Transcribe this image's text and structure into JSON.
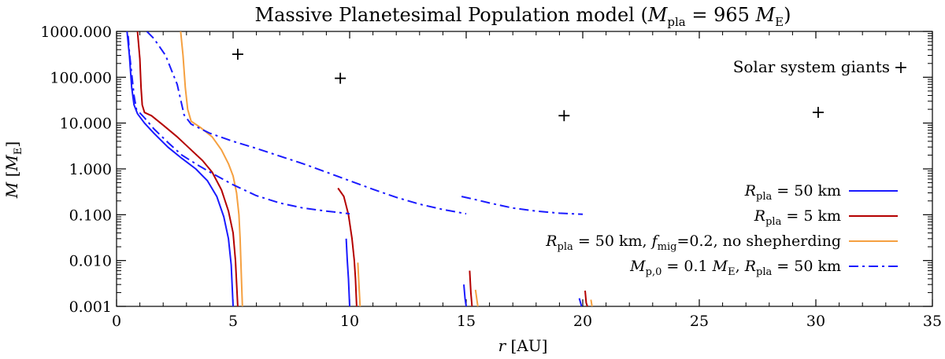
{
  "chart_data": {
    "type": "line",
    "title": {
      "prefix": "Massive Planetesimal Population model (",
      "sym": "M",
      "sub": "pla",
      "mid": " = 965 ",
      "unit": "M",
      "unit_sub": "E",
      "suffix": ")"
    },
    "xlabel": {
      "sym": "r",
      "rest": " [AU]"
    },
    "ylabel": {
      "sym": "M",
      "open": " [",
      "unit": "M",
      "unit_sub": "E",
      "close": "]"
    },
    "xlim": [
      0,
      35
    ],
    "ylim": [
      0.001,
      1000
    ],
    "yscale": "log",
    "xticks": [
      0,
      5,
      10,
      15,
      20,
      25,
      30,
      35
    ],
    "xtick_labels": [
      "0",
      "5",
      "10",
      "15",
      "20",
      "25",
      "30",
      "35"
    ],
    "yticks": [
      0.001,
      0.01,
      0.1,
      1,
      10,
      100,
      1000
    ],
    "ytick_labels": [
      "0.001",
      "0.010",
      "0.100",
      "1.000",
      "10.000",
      "100.000",
      "1000.000"
    ],
    "grid": false,
    "legend_position": "bottom-right",
    "colors": {
      "blue": "#1a1aff",
      "red": "#b40000",
      "orange": "#f5a040",
      "black": "#000000"
    },
    "giants_label": "Solar system giants",
    "giants_marker": "+",
    "giants": [
      {
        "x": 5.2,
        "y": 318
      },
      {
        "x": 9.6,
        "y": 95
      },
      {
        "x": 19.2,
        "y": 14.5
      },
      {
        "x": 30.1,
        "y": 17.1
      }
    ],
    "legend": [
      {
        "color": "#1a1aff",
        "dash": "solid",
        "parts": [
          [
            "R",
            "i"
          ],
          [
            "pla",
            "sub"
          ],
          [
            " = 50 km",
            "n"
          ]
        ]
      },
      {
        "color": "#b40000",
        "dash": "solid",
        "parts": [
          [
            "R",
            "i"
          ],
          [
            "pla",
            "sub"
          ],
          [
            " = 5 km",
            "n"
          ]
        ]
      },
      {
        "color": "#f5a040",
        "dash": "solid",
        "parts": [
          [
            "R",
            "i"
          ],
          [
            "pla",
            "sub"
          ],
          [
            " = 50 km, ",
            "n"
          ],
          [
            "f",
            "i"
          ],
          [
            "mig",
            "sub"
          ],
          [
            "=0.2, no shepherding",
            "n"
          ]
        ]
      },
      {
        "color": "#1a1aff",
        "dash": "dashdot",
        "parts": [
          [
            "M",
            "i"
          ],
          [
            "p,0",
            "sub"
          ],
          [
            " = 0.1 ",
            "n"
          ],
          [
            "M",
            "i"
          ],
          [
            "E",
            "sub"
          ],
          [
            ", ",
            "n"
          ],
          [
            "R",
            "i"
          ],
          [
            "pla",
            "sub"
          ],
          [
            " = 50 km",
            "n"
          ]
        ]
      }
    ],
    "series": [
      {
        "color": "#1a1aff",
        "dash": "solid",
        "points": [
          [
            0.45,
            1000
          ],
          [
            0.55,
            300
          ],
          [
            0.65,
            60
          ],
          [
            0.75,
            25
          ],
          [
            0.9,
            16
          ],
          [
            1.2,
            10
          ],
          [
            1.6,
            6
          ],
          [
            2.2,
            3
          ],
          [
            2.8,
            1.7
          ],
          [
            3.4,
            1
          ],
          [
            3.9,
            0.55
          ],
          [
            4.3,
            0.25
          ],
          [
            4.6,
            0.09
          ],
          [
            4.8,
            0.03
          ],
          [
            4.92,
            0.008
          ],
          [
            5.0,
            0.001
          ]
        ]
      },
      {
        "color": "#1a1aff",
        "dash": "solid",
        "points": [
          [
            9.85,
            0.03
          ],
          [
            9.9,
            0.01
          ],
          [
            9.95,
            0.004
          ],
          [
            10.0,
            0.001
          ]
        ]
      },
      {
        "color": "#1a1aff",
        "dash": "solid",
        "points": [
          [
            14.9,
            0.003
          ],
          [
            14.95,
            0.0015
          ],
          [
            15.0,
            0.001
          ]
        ]
      },
      {
        "color": "#1a1aff",
        "dash": "solid",
        "points": [
          [
            19.85,
            0.0015
          ],
          [
            19.95,
            0.001
          ]
        ]
      },
      {
        "color": "#b40000",
        "dash": "solid",
        "points": [
          [
            0.9,
            1000
          ],
          [
            1.0,
            250
          ],
          [
            1.05,
            60
          ],
          [
            1.1,
            25
          ],
          [
            1.2,
            17
          ],
          [
            1.5,
            14.5
          ],
          [
            2.0,
            9
          ],
          [
            2.6,
            5
          ],
          [
            3.2,
            2.6
          ],
          [
            3.7,
            1.5
          ],
          [
            4.1,
            0.85
          ],
          [
            4.5,
            0.35
          ],
          [
            4.8,
            0.12
          ],
          [
            5.0,
            0.04
          ],
          [
            5.1,
            0.01
          ],
          [
            5.2,
            0.001
          ]
        ]
      },
      {
        "color": "#b40000",
        "dash": "solid",
        "points": [
          [
            9.5,
            0.38
          ],
          [
            9.75,
            0.25
          ],
          [
            9.95,
            0.1
          ],
          [
            10.1,
            0.03
          ],
          [
            10.2,
            0.01
          ],
          [
            10.25,
            0.004
          ],
          [
            10.3,
            0.001
          ]
        ]
      },
      {
        "color": "#b40000",
        "dash": "solid",
        "points": [
          [
            15.15,
            0.006
          ],
          [
            15.2,
            0.002
          ],
          [
            15.25,
            0.001
          ]
        ]
      },
      {
        "color": "#b40000",
        "dash": "solid",
        "points": [
          [
            20.1,
            0.0022
          ],
          [
            20.15,
            0.0012
          ],
          [
            20.2,
            0.001
          ]
        ]
      },
      {
        "color": "#f5a040",
        "dash": "solid",
        "points": [
          [
            2.75,
            1000
          ],
          [
            2.85,
            300
          ],
          [
            2.95,
            60
          ],
          [
            3.05,
            20
          ],
          [
            3.2,
            11
          ],
          [
            3.6,
            8
          ],
          [
            4.1,
            5
          ],
          [
            4.5,
            2.6
          ],
          [
            4.8,
            1.3
          ],
          [
            5.0,
            0.7
          ],
          [
            5.15,
            0.3
          ],
          [
            5.25,
            0.1
          ],
          [
            5.3,
            0.03
          ],
          [
            5.35,
            0.005
          ],
          [
            5.4,
            0.001
          ]
        ]
      },
      {
        "color": "#f5a040",
        "dash": "solid",
        "points": [
          [
            10.35,
            0.009
          ],
          [
            10.4,
            0.003
          ],
          [
            10.45,
            0.001
          ]
        ]
      },
      {
        "color": "#f5a040",
        "dash": "solid",
        "points": [
          [
            15.4,
            0.0023
          ],
          [
            15.45,
            0.0015
          ],
          [
            15.5,
            0.001
          ]
        ]
      },
      {
        "color": "#f5a040",
        "dash": "solid",
        "points": [
          [
            20.35,
            0.0014
          ],
          [
            20.4,
            0.001
          ]
        ]
      },
      {
        "color": "#1a1aff",
        "dash": "dashdot",
        "points": [
          [
            0.5,
            800
          ],
          [
            0.55,
            350
          ],
          [
            0.65,
            120
          ],
          [
            0.75,
            40
          ],
          [
            0.85,
            20
          ],
          [
            1.2,
            13
          ],
          [
            1.6,
            7.5
          ],
          [
            2.2,
            3.8
          ],
          [
            2.8,
            2
          ],
          [
            3.5,
            1.2
          ],
          [
            4.2,
            0.75
          ],
          [
            5,
            0.45
          ],
          [
            6,
            0.26
          ],
          [
            7,
            0.18
          ],
          [
            8,
            0.14
          ],
          [
            9,
            0.12
          ],
          [
            10,
            0.105
          ]
        ]
      },
      {
        "color": "#1a1aff",
        "dash": "dashdot",
        "points": [
          [
            1.3,
            1000
          ],
          [
            1.6,
            700
          ],
          [
            2.1,
            300
          ],
          [
            2.6,
            70
          ],
          [
            2.9,
            15
          ],
          [
            3.2,
            9.5
          ],
          [
            4.0,
            6
          ],
          [
            5.0,
            4
          ],
          [
            6.0,
            2.8
          ],
          [
            7.0,
            1.9
          ],
          [
            8.0,
            1.3
          ],
          [
            9.0,
            0.85
          ],
          [
            10.0,
            0.55
          ],
          [
            11.0,
            0.36
          ],
          [
            12.0,
            0.24
          ],
          [
            13.0,
            0.17
          ],
          [
            14.0,
            0.13
          ],
          [
            15.0,
            0.105
          ]
        ]
      },
      {
        "color": "#1a1aff",
        "dash": "dashdot",
        "points": [
          [
            14.8,
            0.25
          ],
          [
            15.3,
            0.22
          ],
          [
            16,
            0.18
          ],
          [
            17,
            0.14
          ],
          [
            18,
            0.12
          ],
          [
            19,
            0.108
          ],
          [
            20,
            0.102
          ]
        ]
      }
    ]
  }
}
